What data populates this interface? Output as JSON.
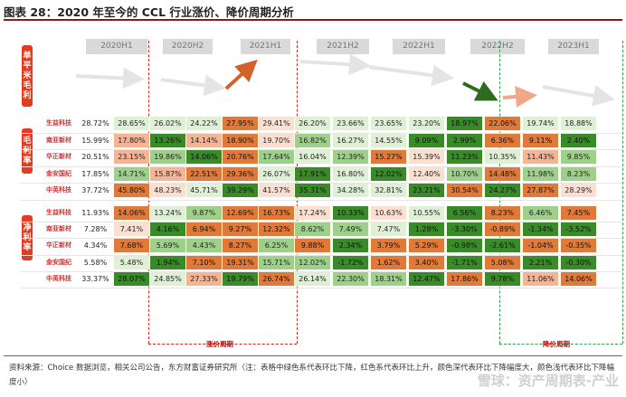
{
  "title": "图表 28：2020 年至今的 CCL 行业涨价、降价周期分析",
  "periods": [
    "2020H1",
    "2020H2",
    "2021H1",
    "2021H2",
    "2022H1",
    "2022H2",
    "2023H1"
  ],
  "sections": {
    "price_trend": "单平米毛利",
    "gross_margin": "毛利率",
    "net_margin": "净利率"
  },
  "companies": [
    "生益科技",
    "南亚新材",
    "华正新材",
    "金安国纪",
    "中英科技"
  ],
  "gross_margin": [
    [
      "28.72%",
      "28.65%",
      "26.02%",
      "24.22%",
      "27.95%",
      "29.41%",
      "26.20%",
      "23.66%",
      "23.65%",
      "23.20%",
      "18.97%",
      "22.06%",
      "19.74%",
      "18.88%"
    ],
    [
      "15.99%",
      "17.80%",
      "13.26%",
      "14.14%",
      "18.90%",
      "19.70%",
      "16.82%",
      "16.27%",
      "14.55%",
      "9.09%",
      "2.99%",
      "6.36%",
      "9.11%",
      "2.40%"
    ],
    [
      "20.51%",
      "23.15%",
      "19.86%",
      "14.06%",
      "20.76%",
      "17.64%",
      "16.04%",
      "12.39%",
      "15.27%",
      "15.39%",
      "11.23%",
      "10.35%",
      "11.43%",
      "9.85%"
    ],
    [
      "17.85%",
      "14.71%",
      "15.87%",
      "22.51%",
      "29.36%",
      "26.07%",
      "17.91%",
      "16.80%",
      "12.02%",
      "12.40%",
      "10.70%",
      "14.48%",
      "11.98%",
      "8.23%"
    ],
    [
      "37.72%",
      "45.80%",
      "48.23%",
      "45.71%",
      "39.29%",
      "41.57%",
      "35.31%",
      "34.28%",
      "32.81%",
      "23.21%",
      "30.54%",
      "24.27%",
      "27.87%",
      "28.29%"
    ]
  ],
  "net_margin": [
    [
      "11.93%",
      "14.06%",
      "13.24%",
      "9.87%",
      "12.69%",
      "16.73%",
      "17.24%",
      "10.33%",
      "10.63%",
      "10.55%",
      "6.56%",
      "8.23%",
      "6.46%",
      "7.45%"
    ],
    [
      "7.28%",
      "7.41%",
      "4.16%",
      "6.94%",
      "9.27%",
      "12.32%",
      "8.62%",
      "7.49%",
      "7.47%",
      "1.28%",
      "-3.30%",
      "-0.89%",
      "-1.34%",
      "-3.52%"
    ],
    [
      "4.34%",
      "7.68%",
      "5.69%",
      "4.43%",
      "8.27%",
      "6.25%",
      "9.88%",
      "2.34%",
      "3.79%",
      "5.29%",
      "-0.98%",
      "-2.61%",
      "-1.04%",
      "-0.35%"
    ],
    [
      "5.58%",
      "5.48%",
      "1.94%",
      "7.10%",
      "19.31%",
      "15.71%",
      "12.02%",
      "-1.72%",
      "1.62%",
      "3.40%",
      "-1.71%",
      "5.08%",
      "2.21%",
      "-0.30%"
    ],
    [
      "33.37%",
      "28.07%",
      "24.85%",
      "27.33%",
      "19.79%",
      "26.74%",
      "26.14%",
      "22.30%",
      "18.31%",
      "12.47%",
      "17.86%",
      "9.78%",
      "11.06%",
      "14.06%"
    ]
  ],
  "cycle_labels": {
    "up": "涨价周期",
    "down": "降价周期"
  },
  "footer": "资料来源：Choice 数据浏览，相关公司公告，东方财富证券研究所（注：表格中绿色系代表环比下降，红色系代表环比上升，颜色深代表环比下降幅度大，颜色浅代表环比下降幅度小）",
  "watermark": "雪球：资产周期表-产业",
  "colors": {
    "accent": "#e63b1e",
    "up_cycle": "#d62a1e",
    "down_cycle": "#2fa64b"
  }
}
